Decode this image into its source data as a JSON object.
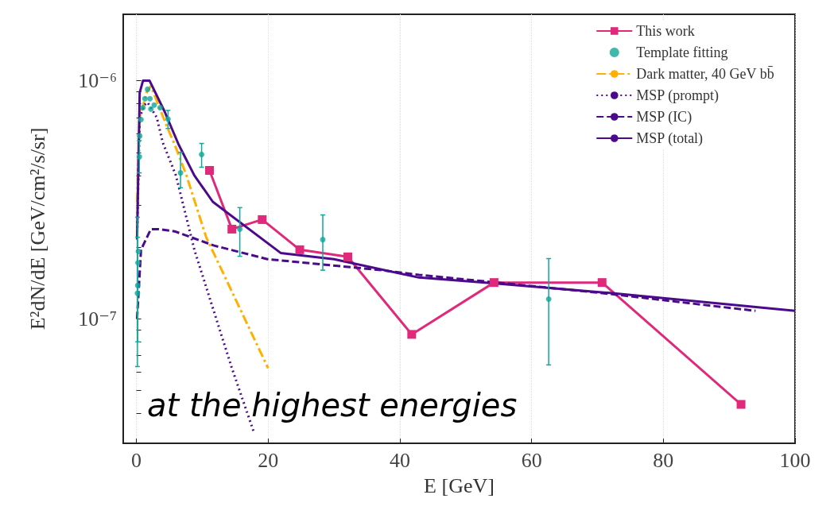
{
  "chart_data": {
    "type": "line",
    "xlabel": "E [GeV]",
    "ylabel": "E²dN/dE [GeV/cm²/s/sr]",
    "log": "y",
    "xlim": [
      -2,
      100
    ],
    "xticks": [
      0,
      20,
      40,
      60,
      80,
      100
    ],
    "ylim": [
      3e-08,
      1.9e-06
    ],
    "yticks": [
      {
        "value": 3e-08,
        "label": null
      },
      {
        "value": 4e-08,
        "label": null
      },
      {
        "value": 5e-08,
        "label": null
      },
      {
        "value": 6e-08,
        "label": null
      },
      {
        "value": 7e-08,
        "label": null
      },
      {
        "value": 8e-08,
        "label": null
      },
      {
        "value": 9e-08,
        "label": null
      },
      {
        "value": 1e-07,
        "label": "10⁻⁷"
      },
      {
        "value": 2e-07,
        "label": null
      },
      {
        "value": 3e-07,
        "label": null
      },
      {
        "value": 4e-07,
        "label": null
      },
      {
        "value": 5e-07,
        "label": null
      },
      {
        "value": 6e-07,
        "label": null
      },
      {
        "value": 7e-07,
        "label": null
      },
      {
        "value": 8e-07,
        "label": null
      },
      {
        "value": 9e-07,
        "label": null
      },
      {
        "value": 1e-06,
        "label": "10⁻⁶"
      }
    ],
    "grid": true,
    "legend": "top right",
    "annotations": [
      "at the highest energies"
    ],
    "series": [
      {
        "name": "This work",
        "color": "#e0297a",
        "marker": "square",
        "line_style": "solid",
        "x": [
          11.1,
          14.5,
          19.1,
          24.8,
          32.1,
          41.8,
          54.3,
          70.7,
          91.8
        ],
        "values": [
          4.2e-07,
          2.38e-07,
          2.61e-07,
          1.95e-07,
          1.82e-07,
          8.6e-08,
          1.42e-07,
          1.42e-07,
          4.37e-08
        ]
      },
      {
        "name": "Template fitting",
        "type": "scatter",
        "color": "#0fa89a",
        "marker": "circle",
        "x": [
          0.16,
          0.2,
          0.24,
          0.3,
          0.45,
          0.5,
          0.7,
          1.0,
          1.3,
          1.7,
          2.05,
          2.2,
          2.7,
          3.6,
          4.8,
          6.7,
          9.9,
          15.7,
          28.3,
          62.6
        ],
        "values": [
          1.28e-07,
          1.38e-07,
          1.72e-07,
          1.92e-07,
          4.79e-07,
          5.85e-07,
          6.87e-07,
          7.7e-07,
          8.4e-07,
          9.2e-07,
          8.4e-07,
          7.6e-07,
          7.9e-07,
          7.7e-07,
          6.9e-07,
          4.1e-07,
          4.9e-07,
          2.38e-07,
          2.15e-07,
          1.21e-07
        ],
        "errors": [
          [
            6.3e-08,
            2.67e-07
          ],
          [
            8e-08,
            2.2e-07
          ],
          null,
          null,
          [
            4.1e-07,
            5.6e-07
          ],
          null,
          null,
          null,
          null,
          null,
          null,
          null,
          null,
          null,
          [
            6.3e-07,
            7.5e-07
          ],
          [
            3.55e-07,
            5e-07
          ],
          [
            4.33e-07,
            5.45e-07
          ],
          [
            1.83e-07,
            2.93e-07
          ],
          [
            1.6e-07,
            2.73e-07
          ],
          [
            6.4e-08,
            1.79e-07
          ]
        ]
      },
      {
        "name": "Dark matter, 40 GeV bb̄",
        "color": "#ffb000",
        "marker": "none",
        "line_style": "dashdot",
        "x": [
          0.1,
          0.5,
          1.6,
          2.2,
          4.6,
          5.8,
          7.6,
          10.6,
          20
        ],
        "values": [
          3.1e-07,
          7e-07,
          9e-07,
          9.5e-07,
          6.45e-07,
          5.4e-07,
          4e-07,
          2.2e-07,
          6.2e-08
        ]
      },
      {
        "name": "MSP (prompt)",
        "color": "#4b0a8a",
        "marker": "none",
        "line_style": "dotted",
        "x": [
          0.1,
          0.5,
          1.2,
          1.7,
          3.1,
          4.0,
          6.0,
          8.8,
          14.5,
          17.9
        ],
        "values": [
          2.2e-07,
          7e-07,
          7.9e-07,
          8.1e-07,
          7e-07,
          5.5e-07,
          4e-07,
          1.95e-07,
          6.2e-08,
          3.3e-08
        ]
      },
      {
        "name": "MSP (IC)",
        "color": "#4b0a8a",
        "marker": "none",
        "line_style": "dashed",
        "x": [
          0.1,
          0.7,
          2.2,
          3.4,
          5.8,
          11.8,
          19.9,
          37.2,
          42.9,
          71,
          94
        ],
        "values": [
          1e-07,
          1.95e-07,
          2.38e-07,
          2.38e-07,
          2.33e-07,
          2.03e-07,
          1.78e-07,
          1.6e-07,
          1.53e-07,
          1.28e-07,
          1.08e-07
        ]
      },
      {
        "name": "MSP (total)",
        "color": "#4b0a8a",
        "marker": "none",
        "line_style": "solid",
        "x": [
          0.1,
          0.5,
          1.0,
          2.0,
          4.3,
          6.4,
          8.8,
          11.6,
          21.9,
          30,
          42.9,
          54.1,
          71,
          100
        ],
        "values": [
          2.15e-07,
          8.9e-07,
          1e-06,
          1e-06,
          7.4e-07,
          5.4e-07,
          4e-07,
          3.1e-07,
          1.89e-07,
          1.78e-07,
          1.49e-07,
          1.41e-07,
          1.29e-07,
          1.08e-07
        ]
      }
    ]
  }
}
